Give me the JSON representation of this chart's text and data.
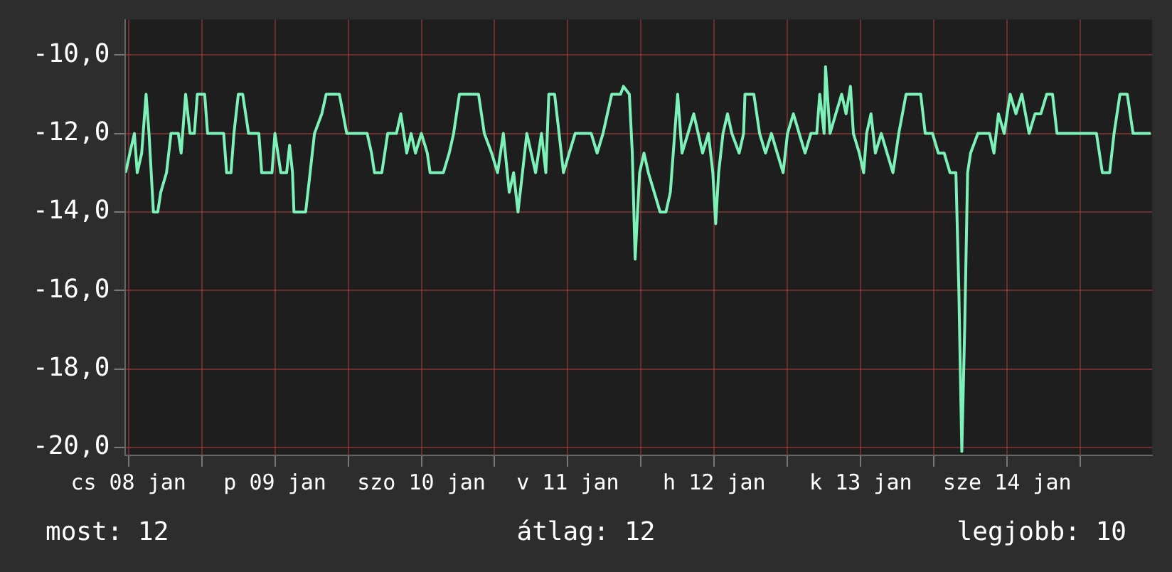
{
  "chart_data": {
    "type": "line",
    "color": "#7cf2b8",
    "grid": true,
    "legend": false,
    "marker": "none",
    "line_style": "solid",
    "xlim": [
      "--01-08T11:30",
      "--01-15T11:45"
    ],
    "xticks": [
      {
        "value": "--01-08T12:00",
        "label": "cs 08 jan"
      },
      {
        "value": "--01-09T00:00",
        "label": null
      },
      {
        "value": "--01-09T12:00",
        "label": "p 09 jan"
      },
      {
        "value": "--01-10T00:00",
        "label": null
      },
      {
        "value": "--01-10T12:00",
        "label": "szo 10 jan"
      },
      {
        "value": "--01-11T00:00",
        "label": null
      },
      {
        "value": "--01-11T12:00",
        "label": "v 11 jan"
      },
      {
        "value": "--01-12T00:00",
        "label": null
      },
      {
        "value": "--01-12T12:00",
        "label": "h 12 jan"
      },
      {
        "value": "--01-13T00:00",
        "label": null
      },
      {
        "value": "--01-13T12:00",
        "label": "k 13 jan"
      },
      {
        "value": "--01-14T00:00",
        "label": null
      },
      {
        "value": "--01-14T12:00",
        "label": "sze 14 jan"
      },
      {
        "value": "--01-15T00:00",
        "label": null
      }
    ],
    "ylim": [
      -20.2,
      -9.1
    ],
    "yticks": [
      {
        "value": -20,
        "label": "-20,0"
      },
      {
        "value": -18,
        "label": "-18,0"
      },
      {
        "value": -16,
        "label": "-16,0"
      },
      {
        "value": -14,
        "label": "-14,0"
      },
      {
        "value": -12,
        "label": "-12,0"
      },
      {
        "value": -10,
        "label": "-10,0"
      }
    ],
    "x": [
      "--01-08T11:31",
      "--01-08T12:14",
      "--01-08T12:58",
      "--01-08T13:26",
      "--01-08T14:10",
      "--01-08T14:53",
      "--01-08T15:22",
      "--01-08T16:05",
      "--01-08T16:48",
      "--01-08T17:17",
      "--01-08T18:14",
      "--01-08T18:58",
      "--01-08T20:10",
      "--01-08T20:38",
      "--01-08T21:22",
      "--01-08T22:05",
      "--01-08T22:48",
      "--01-08T23:17",
      "--01-09T00:29",
      "--01-09T00:58",
      "--01-09T03:36",
      "--01-09T04:05",
      "--01-09T04:48",
      "--01-09T05:17",
      "--01-09T06:00",
      "--01-09T06:43",
      "--01-09T07:41",
      "--01-09T09:22",
      "--01-09T09:50",
      "--01-09T11:31",
      "--01-09T12:00",
      "--01-09T12:58",
      "--01-09T13:55",
      "--01-09T14:24",
      "--01-09T14:53",
      "--01-09T15:07",
      "--01-09T17:02",
      "--01-09T17:46",
      "--01-09T18:29",
      "--01-09T19:41",
      "--01-09T20:24",
      "--01-09T22:34",
      "--01-09T23:46",
      "--01-10T01:41",
      "--01-10T03:07",
      "--01-10T03:50",
      "--01-10T04:19",
      "--01-10T05:31",
      "--01-10T06:29",
      "--01-10T07:55",
      "--01-10T08:38",
      "--01-10T09:36",
      "--01-10T10:19",
      "--01-10T11:02",
      "--01-10T12:00",
      "--01-10T12:58",
      "--01-10T13:26",
      "--01-10T15:36",
      "--01-10T16:34",
      "--01-10T17:17",
      "--01-10T18:14",
      "--01-10T19:26",
      "--01-10T21:22",
      "--01-10T22:19",
      "--01-10T23:31",
      "--01-11T00:29",
      "--01-11T01:26",
      "--01-11T02:24",
      "--01-11T03:07",
      "--01-11T03:50",
      "--01-11T04:34",
      "--01-11T05:17",
      "--01-11T06:00",
      "--01-11T06:43",
      "--01-11T07:41",
      "--01-11T08:24",
      "--01-11T08:53",
      "--01-11T09:50",
      "--01-11T10:34",
      "--01-11T11:17",
      "--01-11T12:14",
      "--01-11T13:12",
      "--01-11T14:10",
      "--01-11T15:50",
      "--01-11T16:48",
      "--01-11T17:46",
      "--01-11T18:29",
      "--01-11T19:12",
      "--01-11T20:10",
      "--01-11T20:38",
      "--01-11T21:07",
      "--01-11T22:05",
      "--01-11T22:34",
      "--01-11T23:02",
      "--01-11T23:46",
      "--01-12T00:29",
      "--01-12T01:12",
      "--01-12T02:10",
      "--01-12T03:07",
      "--01-12T04:05",
      "--01-12T04:48",
      "--01-12T05:31",
      "--01-12T06:00",
      "--01-12T06:43",
      "--01-12T07:41",
      "--01-12T08:38",
      "--01-12T09:22",
      "--01-12T10:05",
      "--01-12T11:02",
      "--01-12T11:46",
      "--01-12T12:14",
      "--01-12T12:43",
      "--01-12T13:26",
      "--01-12T14:10",
      "--01-12T14:53",
      "--01-12T16:05",
      "--01-12T16:48",
      "--01-12T17:02",
      "--01-12T18:29",
      "--01-12T19:26",
      "--01-12T20:24",
      "--01-12T21:22",
      "--01-12T22:19",
      "--01-12T23:17",
      "--01-13T00:00",
      "--01-13T00:58",
      "--01-13T01:55",
      "--01-13T02:53",
      "--01-13T03:50",
      "--01-13T04:48",
      "--01-13T05:17",
      "--01-13T06:00",
      "--01-13T06:14",
      "--01-13T06:58",
      "--01-13T07:55",
      "--01-13T08:53",
      "--01-13T09:36",
      "--01-13T10:19",
      "--01-13T10:48",
      "--01-13T11:46",
      "--01-13T12:29",
      "--01-13T12:58",
      "--01-13T13:41",
      "--01-13T14:24",
      "--01-13T15:22",
      "--01-13T16:19",
      "--01-13T17:17",
      "--01-13T18:14",
      "--01-13T19:26",
      "--01-13T21:50",
      "--01-13T22:34",
      "--01-13T23:46",
      "--01-14T00:43",
      "--01-14T01:41",
      "--01-14T02:38",
      "--01-14T03:36",
      "--01-14T04:05",
      "--01-14T04:34",
      "--01-14T05:02",
      "--01-14T05:31",
      "--01-14T06:00",
      "--01-14T07:12",
      "--01-14T09:07",
      "--01-14T09:50",
      "--01-14T10:34",
      "--01-14T11:31",
      "--01-14T12:29",
      "--01-14T13:26",
      "--01-14T14:24",
      "--01-14T15:36",
      "--01-14T16:34",
      "--01-14T17:31",
      "--01-14T18:29",
      "--01-14T19:26",
      "--01-14T20:10",
      "--01-14T21:50",
      "--01-14T23:02",
      "--01-15T00:58",
      "--01-15T02:38",
      "--01-15T03:36",
      "--01-15T04:48",
      "--01-15T05:31",
      "--01-15T06:29",
      "--01-15T07:41",
      "--01-15T08:38",
      "--01-15T11:31"
    ],
    "values": [
      -13,
      -12.5,
      -12,
      -13,
      -12.5,
      -11,
      -12,
      -14,
      -14,
      -13.5,
      -13,
      -12,
      -12,
      -12.5,
      -11,
      -12,
      -12,
      -11,
      -11,
      -12,
      -12,
      -13,
      -13,
      -12,
      -11,
      -11,
      -12,
      -12,
      -13,
      -13,
      -12,
      -13,
      -13,
      -12.3,
      -13,
      -14,
      -14,
      -13,
      -12,
      -11.5,
      -11,
      -11,
      -12,
      -12,
      -12,
      -12.5,
      -13,
      -13,
      -12,
      -12,
      -11.5,
      -12.5,
      -12,
      -12.5,
      -12,
      -12.5,
      -13,
      -13,
      -12.5,
      -12,
      -11,
      -11,
      -11,
      -12,
      -12.5,
      -13,
      -12,
      -13.5,
      -13,
      -14,
      -13,
      -12,
      -12.5,
      -13,
      -12,
      -13,
      -11,
      -11,
      -12,
      -13,
      -12.5,
      -12,
      -12,
      -12,
      -12.5,
      -12,
      -11.5,
      -11,
      -11,
      -11,
      -10.8,
      -11,
      -12.5,
      -15.2,
      -13,
      -12.5,
      -13,
      -13.5,
      -14,
      -14,
      -13.5,
      -12,
      -11,
      -12.5,
      -12,
      -11.5,
      -12,
      -12.5,
      -12,
      -13,
      -14.3,
      -13,
      -12,
      -11.5,
      -12,
      -12.5,
      -12,
      -11,
      -11,
      -12,
      -12.5,
      -12,
      -12.5,
      -13,
      -12,
      -11.5,
      -12,
      -12.5,
      -12,
      -12,
      -11,
      -12,
      -10.3,
      -12,
      -11.5,
      -11,
      -11.5,
      -10.8,
      -12,
      -12.5,
      -13,
      -12,
      -11.5,
      -12.5,
      -12,
      -12.5,
      -13,
      -12,
      -11,
      -11,
      -12,
      -12,
      -12.5,
      -12.5,
      -13,
      -13,
      -16,
      -20.1,
      -17,
      -13,
      -12.5,
      -12,
      -12,
      -12.5,
      -11.5,
      -12,
      -11,
      -11.5,
      -11,
      -12,
      -11.5,
      -11.5,
      -11,
      -11,
      -12,
      -12,
      -12,
      -12,
      -12,
      -13,
      -13,
      -12,
      -11,
      -11,
      -12,
      -12
    ],
    "annotations": [
      "most: 12",
      "átlag: 12",
      "legjobb: 10"
    ]
  }
}
